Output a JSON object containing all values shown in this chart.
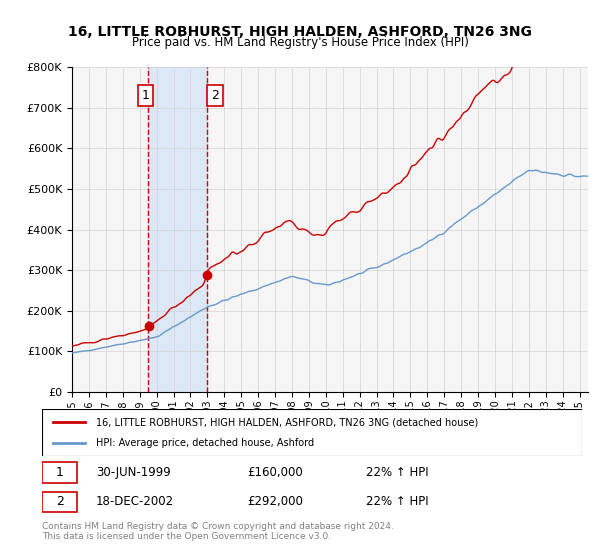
{
  "title": "16, LITTLE ROBHURST, HIGH HALDEN, ASHFORD, TN26 3NG",
  "subtitle": "Price paid vs. HM Land Registry's House Price Index (HPI)",
  "ylabel_ticks": [
    "£0",
    "£100K",
    "£200K",
    "£300K",
    "£400K",
    "£500K",
    "£600K",
    "£700K",
    "£800K"
  ],
  "ylim": [
    0,
    800000
  ],
  "xlim_start": 1995.0,
  "xlim_end": 2025.5,
  "red_line_color": "#cc0000",
  "blue_line_color": "#6699cc",
  "shaded_color": "#cce0f5",
  "dashed_color": "#cc0000",
  "legend_label_red": "16, LITTLE ROBHURST, HIGH HALDEN, ASHFORD, TN26 3NG (detached house)",
  "legend_label_blue": "HPI: Average price, detached house, Ashford",
  "transaction1_label": "1",
  "transaction1_date": "30-JUN-1999",
  "transaction1_price": "£160,000",
  "transaction1_hpi": "22% ↑ HPI",
  "transaction1_year": 1999.5,
  "transaction2_label": "2",
  "transaction2_date": "18-DEC-2002",
  "transaction2_price": "£292,000",
  "transaction2_hpi": "22% ↑ HPI",
  "transaction2_year": 2002.96,
  "footnote": "Contains HM Land Registry data © Crown copyright and database right 2024.\nThis data is licensed under the Open Government Licence v3.0.",
  "background_color": "#ffffff",
  "plot_bg_color": "#f5f5f5"
}
